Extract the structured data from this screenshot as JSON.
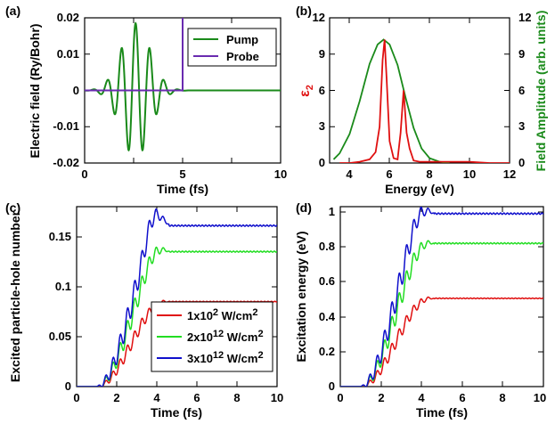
{
  "chart_data": [
    {
      "panel_label": "(a)",
      "type": "line",
      "xlabel": "Time (fs)",
      "ylabel": "Electric field (Ry/Bohr)",
      "xlim": [
        0,
        10
      ],
      "ylim": [
        -0.02,
        0.02
      ],
      "xticks": [
        "0",
        "5",
        "10"
      ],
      "yticks": [
        "-0.02",
        "-0.01",
        "0",
        "0.01",
        "0.02"
      ],
      "legend": "top-right",
      "series": [
        {
          "name": "Pump",
          "color": "#1a8a1a",
          "shape": "gaussian-pulse",
          "center_fs": 2.6,
          "width_fs": 1.05,
          "period_fs": 0.72,
          "peak": 0.0185
        },
        {
          "name": "Probe",
          "color": "#6a2bb0",
          "shape": "step",
          "x": [
            0,
            5,
            5
          ],
          "y": [
            0,
            0,
            0.02
          ]
        }
      ]
    },
    {
      "panel_label": "(b)",
      "type": "line",
      "xlabel": "Energy (eV)",
      "ylabel_left": "ε2",
      "ylabel_left_text": "ε",
      "ylabel_left_sub": "2",
      "ylabel_right": "Field Amplitude (arb. units)",
      "xlim": [
        3,
        12
      ],
      "ylim_left": [
        0,
        12
      ],
      "ylim_right": [
        0,
        12
      ],
      "xticks": [
        "4",
        "6",
        "8",
        "10",
        "12"
      ],
      "yticks_left": [
        "0",
        "3",
        "6",
        "9",
        "12"
      ],
      "yticks_right": [
        "0",
        "3",
        "6",
        "9",
        "12"
      ],
      "series": [
        {
          "name": "Field Amplitude",
          "color": "#1a8a1a",
          "x": [
            3.2,
            3.5,
            4.0,
            4.5,
            5.0,
            5.4,
            5.7,
            6.0,
            6.4,
            6.8,
            7.2,
            7.6,
            8.0,
            8.5,
            9.0
          ],
          "y": [
            0.3,
            0.8,
            2.4,
            5.1,
            8.2,
            9.8,
            10.2,
            9.8,
            8.1,
            5.4,
            2.9,
            1.2,
            0.4,
            0.1,
            0.0
          ]
        },
        {
          "name": "ε2",
          "color": "#e01010",
          "x": [
            3.5,
            4.0,
            4.5,
            5.0,
            5.3,
            5.5,
            5.65,
            5.75,
            5.85,
            6.0,
            6.2,
            6.4,
            6.55,
            6.7,
            6.85,
            7.0,
            7.2,
            7.5,
            8.0,
            9.0,
            10.0,
            11.0,
            12.0
          ],
          "y": [
            0.0,
            0.0,
            0.1,
            0.3,
            0.9,
            3.0,
            8.5,
            10.2,
            7.0,
            1.8,
            0.4,
            0.3,
            2.5,
            6.0,
            2.5,
            1.2,
            0.2,
            0.1,
            0.1,
            0.1,
            0.1,
            0.0,
            0.0
          ]
        }
      ]
    },
    {
      "panel_label": "(c)",
      "type": "line",
      "xlabel": "Time (fs)",
      "ylabel": "Excited particle-hole number",
      "xlim": [
        0,
        10
      ],
      "ylim": [
        0,
        0.18
      ],
      "xticks": [
        "0",
        "2",
        "4",
        "6",
        "8",
        "10"
      ],
      "yticks": [
        "0",
        "0.05",
        "0.1",
        "0.15"
      ],
      "legend": "bottom-right",
      "series": [
        {
          "name": "1x10",
          "exp": "2",
          "unit": " W/cm",
          "unit_exp": "2",
          "color": "#e01010",
          "final": 0.085,
          "overshoot": 0.0
        },
        {
          "name": "2x10",
          "exp": "12",
          "unit": " W/cm",
          "unit_exp": "2",
          "color": "#22dd22",
          "final": 0.135,
          "overshoot": 0.006
        },
        {
          "name": "3x10",
          "exp": "12",
          "unit": " W/cm",
          "unit_exp": "2",
          "color": "#1010cc",
          "final": 0.161,
          "overshoot": 0.02
        }
      ]
    },
    {
      "panel_label": "(d)",
      "type": "line",
      "xlabel": "Time (fs)",
      "ylabel": "Excitation energy (eV)",
      "xlim": [
        0,
        10
      ],
      "ylim": [
        0,
        1.03
      ],
      "xticks": [
        "0",
        "2",
        "4",
        "6",
        "8",
        "10"
      ],
      "yticks": [
        "0",
        "0.2",
        "0.4",
        "0.6",
        "0.8",
        "1"
      ],
      "series": [
        {
          "name": "1x10^2 W/cm^2",
          "color": "#e01010",
          "final": 0.505,
          "overshoot": 0.0
        },
        {
          "name": "2x10^12 W/cm^2",
          "color": "#22dd22",
          "final": 0.82,
          "overshoot": 0.01
        },
        {
          "name": "3x10^12 W/cm^2",
          "color": "#1010cc",
          "final": 0.99,
          "overshoot": 0.05
        }
      ]
    }
  ]
}
